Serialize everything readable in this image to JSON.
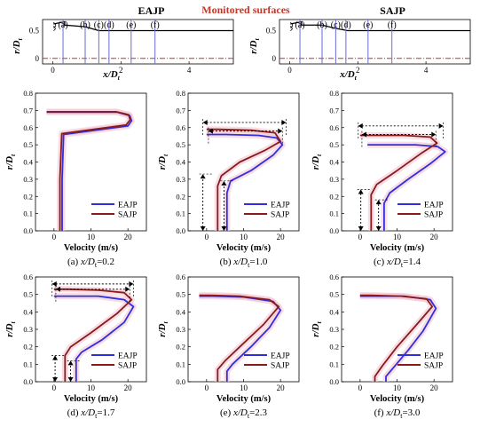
{
  "figure": {
    "center_label": "Monitored surfaces",
    "colors": {
      "eajp": "#2f2fe0",
      "sajp": "#8b1a1a",
      "surface_line": "#6a6ad8",
      "axis_dash": "#c0392b",
      "glow": "#f4c6d2"
    },
    "top_panels": [
      {
        "title": "EAJP",
        "xlabel_main": "x/D",
        "xlabel_sub": "t",
        "ylabel_main": "r/D",
        "ylabel_sub": "t",
        "xticks": [
          "0",
          "2",
          "4"
        ],
        "yticks": [
          "0",
          "0.5"
        ],
        "surface_labels": [
          "(a)",
          "(b)",
          "(c)",
          "(d)",
          "(e)",
          "(f)"
        ]
      },
      {
        "title": "SAJP",
        "xlabel_main": "x/D",
        "xlabel_sub": "t",
        "ylabel_main": "r/D",
        "ylabel_sub": "t",
        "xticks": [
          "0",
          "2",
          "4"
        ],
        "yticks": [
          "0",
          "0.5"
        ],
        "surface_labels": [
          "(a)",
          "(b)",
          "(c)",
          "(d)",
          "(e)",
          "(f)"
        ]
      }
    ]
  },
  "chart_data": [
    {
      "type": "line",
      "panel": "(a)",
      "caption_prefix": "(a) ",
      "caption_var": "x/D",
      "caption_sub": "t",
      "caption_value": "=0.2",
      "xlabel": "Velocity (m/s)",
      "ylabel_main": "r/D",
      "ylabel_sub": "t",
      "xlim": [
        -5,
        25
      ],
      "ylim": [
        0,
        0.8
      ],
      "xticks": [
        0,
        10,
        20
      ],
      "yticks": [
        0,
        0.1,
        0.2,
        0.3,
        0.4,
        0.5,
        0.6,
        0.7,
        0.8
      ],
      "legend": [
        "EAJP",
        "SAJP"
      ],
      "series": [
        {
          "name": "EAJP",
          "x": [
            2.2,
            2.2,
            2.6,
            20,
            21,
            20.5,
            17,
            -2
          ],
          "y": [
            0,
            0.3,
            0.56,
            0.61,
            0.64,
            0.67,
            0.69,
            0.69
          ]
        },
        {
          "name": "SAJP",
          "x": [
            1.6,
            1.6,
            2.1,
            19.5,
            20.6,
            20.2,
            16.8,
            -2
          ],
          "y": [
            0,
            0.3,
            0.565,
            0.615,
            0.645,
            0.675,
            0.692,
            0.692
          ]
        }
      ]
    },
    {
      "type": "line",
      "panel": "(b)",
      "caption_prefix": "(b) ",
      "caption_var": "x/D",
      "caption_sub": "t",
      "caption_value": "=1.0",
      "xlabel": "Velocity (m/s)",
      "ylabel_main": "r/D",
      "ylabel_sub": "t",
      "xlim": [
        -5,
        25
      ],
      "ylim": [
        0,
        0.8
      ],
      "xticks": [
        0,
        10,
        20
      ],
      "yticks": [
        0,
        0.1,
        0.2,
        0.3,
        0.4,
        0.5,
        0.6,
        0.7,
        0.8
      ],
      "legend": [
        "EAJP",
        "SAJP"
      ],
      "series": [
        {
          "name": "EAJP",
          "x": [
            5.5,
            5.5,
            6.5,
            12,
            18,
            20.5,
            19,
            14,
            5,
            0
          ],
          "y": [
            0,
            0.22,
            0.29,
            0.35,
            0.44,
            0.5,
            0.54,
            0.555,
            0.56,
            0.56
          ]
        },
        {
          "name": "SAJP",
          "x": [
            3,
            3,
            4,
            9,
            16,
            20,
            18.5,
            12,
            3,
            0
          ],
          "y": [
            0,
            0.26,
            0.32,
            0.4,
            0.47,
            0.52,
            0.57,
            0.585,
            0.59,
            0.59
          ]
        }
      ]
    },
    {
      "type": "line",
      "panel": "(c)",
      "caption_prefix": "(c) ",
      "caption_var": "x/D",
      "caption_sub": "t",
      "caption_value": "=1.4",
      "xlabel": "Velocity (m/s)",
      "ylabel_main": "r/D",
      "ylabel_sub": "t",
      "xlim": [
        -5,
        25
      ],
      "ylim": [
        0,
        0.8
      ],
      "xticks": [
        0,
        10,
        20
      ],
      "yticks": [
        0,
        0.1,
        0.2,
        0.3,
        0.4,
        0.5,
        0.6,
        0.7,
        0.8
      ],
      "legend": [
        "EAJP",
        "SAJP"
      ],
      "series": [
        {
          "name": "EAJP",
          "x": [
            6.5,
            6.5,
            8,
            13,
            19,
            23,
            21,
            15,
            6,
            2
          ],
          "y": [
            0,
            0.16,
            0.22,
            0.3,
            0.39,
            0.46,
            0.49,
            0.5,
            0.5,
            0.5
          ]
        },
        {
          "name": "SAJP",
          "x": [
            3,
            3,
            4.5,
            10,
            16.5,
            20.8,
            19,
            12,
            4,
            0
          ],
          "y": [
            0,
            0.21,
            0.27,
            0.35,
            0.45,
            0.51,
            0.545,
            0.555,
            0.555,
            0.555
          ]
        }
      ]
    },
    {
      "type": "line",
      "panel": "(d)",
      "caption_prefix": "(d) ",
      "caption_var": "x/D",
      "caption_sub": "t",
      "caption_value": "=1.7",
      "xlabel": "Velocity (m/s)",
      "ylabel_main": "r/D",
      "ylabel_sub": "t",
      "xlim": [
        -5,
        25
      ],
      "ylim": [
        0,
        0.6
      ],
      "xticks": [
        0,
        10,
        20
      ],
      "yticks": [
        0,
        0.1,
        0.2,
        0.3,
        0.4,
        0.5,
        0.6
      ],
      "legend": [
        "EAJP",
        "SAJP"
      ],
      "series": [
        {
          "name": "EAJP",
          "x": [
            6,
            6,
            7.5,
            13,
            19,
            21.5,
            19,
            12,
            4,
            0
          ],
          "y": [
            0,
            0.13,
            0.17,
            0.24,
            0.34,
            0.43,
            0.47,
            0.49,
            0.49,
            0.49
          ]
        },
        {
          "name": "SAJP",
          "x": [
            3,
            3,
            4.5,
            10,
            17,
            21,
            19,
            12,
            4,
            0
          ],
          "y": [
            0,
            0.15,
            0.2,
            0.28,
            0.39,
            0.47,
            0.51,
            0.525,
            0.53,
            0.53
          ]
        }
      ]
    },
    {
      "type": "line",
      "panel": "(e)",
      "caption_prefix": "(e) ",
      "caption_var": "x/D",
      "caption_sub": "t",
      "caption_value": "=2.3",
      "xlabel": "Velocity (m/s)",
      "ylabel_main": "r/D",
      "ylabel_sub": "t",
      "xlim": [
        -5,
        25
      ],
      "ylim": [
        0,
        0.6
      ],
      "xticks": [
        0,
        10,
        20
      ],
      "yticks": [
        0,
        0.1,
        0.2,
        0.3,
        0.4,
        0.5,
        0.6
      ],
      "legend": [
        "EAJP",
        "SAJP"
      ],
      "series": [
        {
          "name": "EAJP",
          "x": [
            5.5,
            5.5,
            7,
            12,
            17,
            20,
            18,
            10,
            2,
            -2
          ],
          "y": [
            0,
            0.06,
            0.1,
            0.2,
            0.31,
            0.41,
            0.46,
            0.485,
            0.49,
            0.49
          ]
        },
        {
          "name": "SAJP",
          "x": [
            3,
            3,
            5,
            10,
            15.5,
            19.5,
            17,
            9,
            1,
            -2
          ],
          "y": [
            0,
            0.07,
            0.12,
            0.22,
            0.33,
            0.43,
            0.47,
            0.49,
            0.495,
            0.495
          ]
        }
      ]
    },
    {
      "type": "line",
      "panel": "(f)",
      "caption_prefix": "(f) ",
      "caption_var": "x/D",
      "caption_sub": "t",
      "caption_value": "=3.0",
      "xlabel": "Velocity (m/s)",
      "ylabel_main": "r/D",
      "ylabel_sub": "t",
      "xlim": [
        -5,
        25
      ],
      "ylim": [
        0,
        0.6
      ],
      "xticks": [
        0,
        10,
        20
      ],
      "yticks": [
        0,
        0.1,
        0.2,
        0.3,
        0.4,
        0.5,
        0.6
      ],
      "legend": [
        "EAJP",
        "SAJP"
      ],
      "series": [
        {
          "name": "EAJP",
          "x": [
            7,
            7,
            9,
            13,
            17,
            20.5,
            19,
            12,
            3,
            0
          ],
          "y": [
            0,
            0.03,
            0.08,
            0.18,
            0.29,
            0.42,
            0.47,
            0.49,
            0.49,
            0.49
          ]
        },
        {
          "name": "SAJP",
          "x": [
            4,
            4,
            6,
            10,
            15,
            19.5,
            18,
            11,
            3,
            0
          ],
          "y": [
            0,
            0.03,
            0.09,
            0.2,
            0.32,
            0.43,
            0.475,
            0.49,
            0.495,
            0.495
          ]
        }
      ]
    }
  ]
}
